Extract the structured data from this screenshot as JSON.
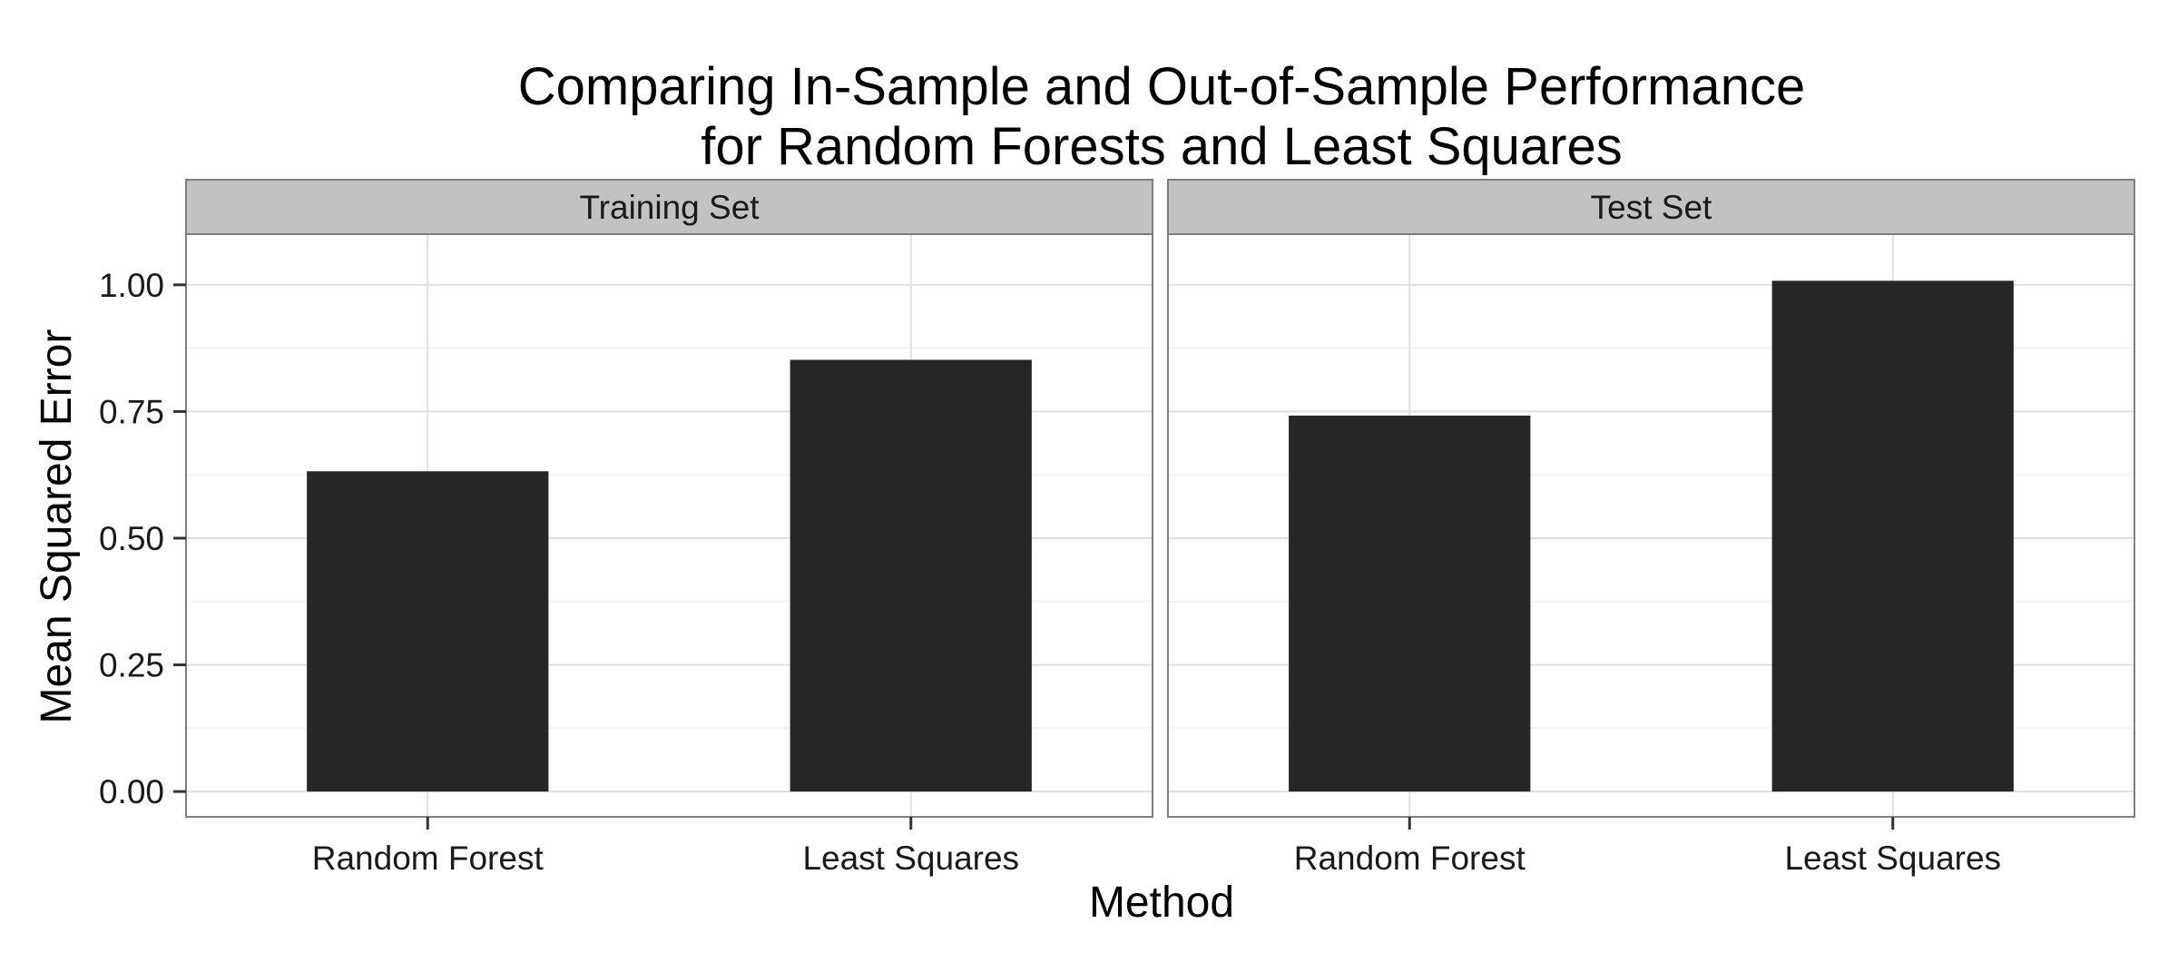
{
  "chart_data": {
    "type": "bar",
    "title_lines": [
      "Comparing In-Sample and Out-of-Sample Performance",
      "for Random Forests and Least Squares"
    ],
    "xlabel": "Method",
    "ylabel": "Mean Squared Error",
    "categories": [
      "Random Forest",
      "Least Squares"
    ],
    "ylim": [
      -0.05,
      1.1
    ],
    "yticks": [
      0.0,
      0.25,
      0.5,
      0.75,
      1.0
    ],
    "ytick_labels": [
      "0.00",
      "0.25",
      "0.50",
      "0.75",
      "1.00"
    ],
    "grid": true,
    "bar_color": "#262626",
    "panels": [
      {
        "name": "Training Set",
        "values": [
          0.632,
          0.852
        ]
      },
      {
        "name": "Test Set",
        "values": [
          0.742,
          1.008
        ]
      }
    ]
  }
}
